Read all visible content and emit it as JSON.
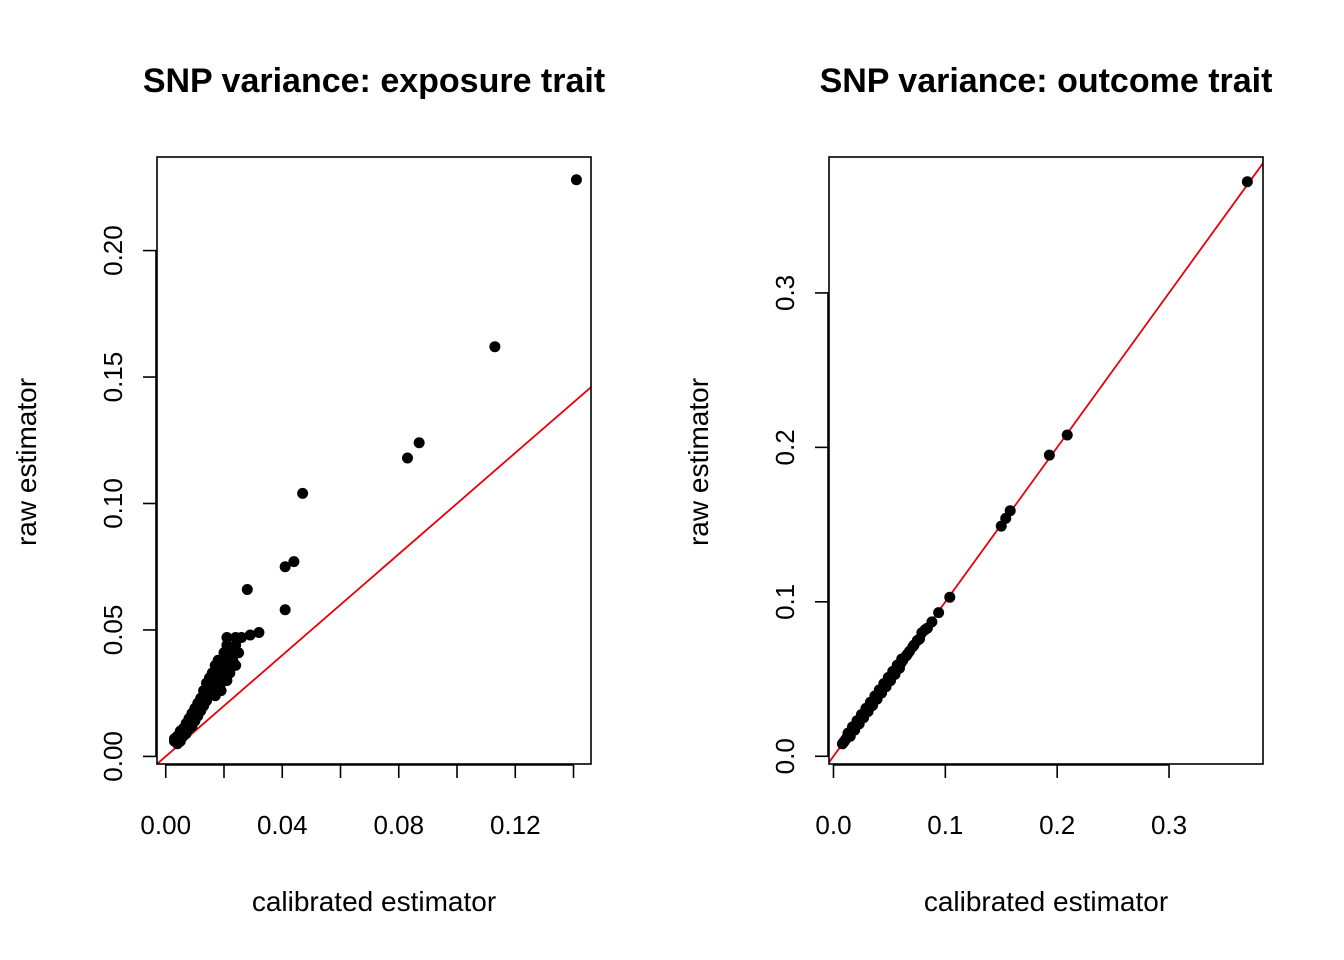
{
  "chart_data": [
    {
      "type": "scatter",
      "title": "SNP variance: exposure trait",
      "xlabel": "calibrated estimator",
      "ylabel": "raw estimator",
      "xlim": [
        -0.003,
        0.146
      ],
      "ylim": [
        -0.003,
        0.237
      ],
      "xticks": [
        0.0,
        0.02,
        0.04,
        0.06,
        0.08,
        0.1,
        0.12,
        0.14
      ],
      "xtick_labels": [
        "0.00",
        "",
        "0.04",
        "",
        "0.08",
        "",
        "0.12",
        ""
      ],
      "yticks": [
        0.0,
        0.05,
        0.1,
        0.15,
        0.2
      ],
      "ytick_labels": [
        "0.00",
        "0.05",
        "0.10",
        "0.15",
        "0.20"
      ],
      "reference_line": {
        "intercept": 0,
        "slope": 1,
        "color": "#e8000b"
      },
      "point_color": "#000000",
      "grid": false,
      "legend": "none",
      "points": [
        [
          0.141,
          0.228
        ],
        [
          0.113,
          0.162
        ],
        [
          0.087,
          0.124
        ],
        [
          0.083,
          0.118
        ],
        [
          0.047,
          0.104
        ],
        [
          0.044,
          0.077
        ],
        [
          0.041,
          0.075
        ],
        [
          0.041,
          0.058
        ],
        [
          0.028,
          0.066
        ],
        [
          0.032,
          0.049
        ],
        [
          0.029,
          0.048
        ],
        [
          0.026,
          0.047
        ],
        [
          0.023,
          0.042
        ],
        [
          0.021,
          0.047
        ],
        [
          0.021,
          0.044
        ],
        [
          0.024,
          0.044
        ],
        [
          0.022,
          0.04
        ],
        [
          0.02,
          0.041
        ],
        [
          0.023,
          0.038
        ],
        [
          0.021,
          0.036
        ],
        [
          0.019,
          0.038
        ],
        [
          0.018,
          0.038
        ],
        [
          0.017,
          0.036
        ],
        [
          0.019,
          0.035
        ],
        [
          0.02,
          0.032
        ],
        [
          0.018,
          0.032
        ],
        [
          0.016,
          0.033
        ],
        [
          0.017,
          0.03
        ],
        [
          0.015,
          0.031
        ],
        [
          0.018,
          0.028
        ],
        [
          0.016,
          0.028
        ],
        [
          0.014,
          0.029
        ],
        [
          0.021,
          0.03
        ],
        [
          0.015,
          0.026
        ],
        [
          0.013,
          0.026
        ],
        [
          0.016,
          0.025
        ],
        [
          0.013,
          0.024
        ],
        [
          0.012,
          0.023
        ],
        [
          0.014,
          0.022
        ],
        [
          0.012,
          0.021
        ],
        [
          0.011,
          0.021
        ],
        [
          0.013,
          0.02
        ],
        [
          0.011,
          0.019
        ],
        [
          0.01,
          0.019
        ],
        [
          0.012,
          0.018
        ],
        [
          0.01,
          0.017
        ],
        [
          0.009,
          0.017
        ],
        [
          0.011,
          0.016
        ],
        [
          0.009,
          0.015
        ],
        [
          0.008,
          0.015
        ],
        [
          0.01,
          0.014
        ],
        [
          0.008,
          0.013
        ],
        [
          0.007,
          0.013
        ],
        [
          0.009,
          0.012
        ],
        [
          0.007,
          0.012
        ],
        [
          0.006,
          0.011
        ],
        [
          0.008,
          0.011
        ],
        [
          0.006,
          0.01
        ],
        [
          0.005,
          0.01
        ],
        [
          0.007,
          0.009
        ],
        [
          0.005,
          0.009
        ],
        [
          0.004,
          0.008
        ],
        [
          0.006,
          0.008
        ],
        [
          0.004,
          0.007
        ],
        [
          0.003,
          0.007
        ],
        [
          0.005,
          0.006
        ],
        [
          0.003,
          0.006
        ],
        [
          0.004,
          0.005
        ],
        [
          0.024,
          0.036
        ],
        [
          0.022,
          0.033
        ],
        [
          0.019,
          0.031
        ],
        [
          0.017,
          0.027
        ],
        [
          0.015,
          0.024
        ],
        [
          0.014,
          0.025
        ],
        [
          0.019,
          0.029
        ],
        [
          0.02,
          0.035
        ],
        [
          0.018,
          0.034
        ],
        [
          0.016,
          0.029
        ],
        [
          0.013,
          0.022
        ],
        [
          0.011,
          0.018
        ],
        [
          0.024,
          0.047
        ],
        [
          0.025,
          0.041
        ],
        [
          0.022,
          0.037
        ],
        [
          0.019,
          0.026
        ],
        [
          0.017,
          0.024
        ]
      ]
    },
    {
      "type": "scatter",
      "title": "SNP variance: outcome trait",
      "xlabel": "calibrated estimator",
      "ylabel": "raw estimator",
      "xlim": [
        -0.004,
        0.384
      ],
      "ylim": [
        -0.005,
        0.388
      ],
      "xticks": [
        0.0,
        0.1,
        0.2,
        0.3
      ],
      "xtick_labels": [
        "0.0",
        "0.1",
        "0.2",
        "0.3"
      ],
      "yticks": [
        0.0,
        0.1,
        0.2,
        0.3
      ],
      "ytick_labels": [
        "0.0",
        "0.1",
        "0.2",
        "0.3"
      ],
      "reference_line": {
        "intercept": 0,
        "slope": 1,
        "color": "#e8000b"
      },
      "point_color": "#000000",
      "grid": false,
      "legend": "none",
      "points": [
        [
          0.37,
          0.372
        ],
        [
          0.209,
          0.208
        ],
        [
          0.193,
          0.195
        ],
        [
          0.158,
          0.159
        ],
        [
          0.154,
          0.154
        ],
        [
          0.15,
          0.149
        ],
        [
          0.104,
          0.103
        ],
        [
          0.094,
          0.093
        ],
        [
          0.088,
          0.087
        ],
        [
          0.084,
          0.083
        ],
        [
          0.079,
          0.08
        ],
        [
          0.075,
          0.075
        ],
        [
          0.071,
          0.071
        ],
        [
          0.068,
          0.068
        ],
        [
          0.065,
          0.065
        ],
        [
          0.062,
          0.062
        ],
        [
          0.06,
          0.06
        ],
        [
          0.058,
          0.058
        ],
        [
          0.056,
          0.056
        ],
        [
          0.054,
          0.054
        ],
        [
          0.052,
          0.052
        ],
        [
          0.05,
          0.05
        ],
        [
          0.048,
          0.048
        ],
        [
          0.046,
          0.046
        ],
        [
          0.044,
          0.044
        ],
        [
          0.042,
          0.042
        ],
        [
          0.04,
          0.04
        ],
        [
          0.038,
          0.038
        ],
        [
          0.036,
          0.036
        ],
        [
          0.034,
          0.034
        ],
        [
          0.032,
          0.032
        ],
        [
          0.03,
          0.03
        ],
        [
          0.028,
          0.028
        ],
        [
          0.026,
          0.026
        ],
        [
          0.024,
          0.024
        ],
        [
          0.022,
          0.022
        ],
        [
          0.02,
          0.02
        ],
        [
          0.018,
          0.018
        ],
        [
          0.016,
          0.016
        ],
        [
          0.014,
          0.014
        ],
        [
          0.012,
          0.012
        ],
        [
          0.011,
          0.011
        ],
        [
          0.01,
          0.01
        ],
        [
          0.009,
          0.009
        ],
        [
          0.008,
          0.008
        ],
        [
          0.061,
          0.063
        ],
        [
          0.057,
          0.059
        ],
        [
          0.053,
          0.055
        ],
        [
          0.049,
          0.051
        ],
        [
          0.045,
          0.047
        ],
        [
          0.041,
          0.043
        ],
        [
          0.037,
          0.039
        ],
        [
          0.033,
          0.035
        ],
        [
          0.029,
          0.031
        ],
        [
          0.025,
          0.027
        ],
        [
          0.021,
          0.023
        ],
        [
          0.017,
          0.019
        ],
        [
          0.013,
          0.015
        ],
        [
          0.015,
          0.013
        ],
        [
          0.019,
          0.017
        ],
        [
          0.023,
          0.021
        ],
        [
          0.027,
          0.025
        ],
        [
          0.031,
          0.029
        ],
        [
          0.035,
          0.033
        ],
        [
          0.039,
          0.037
        ],
        [
          0.043,
          0.041
        ],
        [
          0.047,
          0.045
        ],
        [
          0.051,
          0.049
        ],
        [
          0.055,
          0.053
        ],
        [
          0.059,
          0.057
        ],
        [
          0.066,
          0.066
        ],
        [
          0.072,
          0.072
        ],
        [
          0.077,
          0.076
        ],
        [
          0.082,
          0.082
        ]
      ]
    }
  ]
}
